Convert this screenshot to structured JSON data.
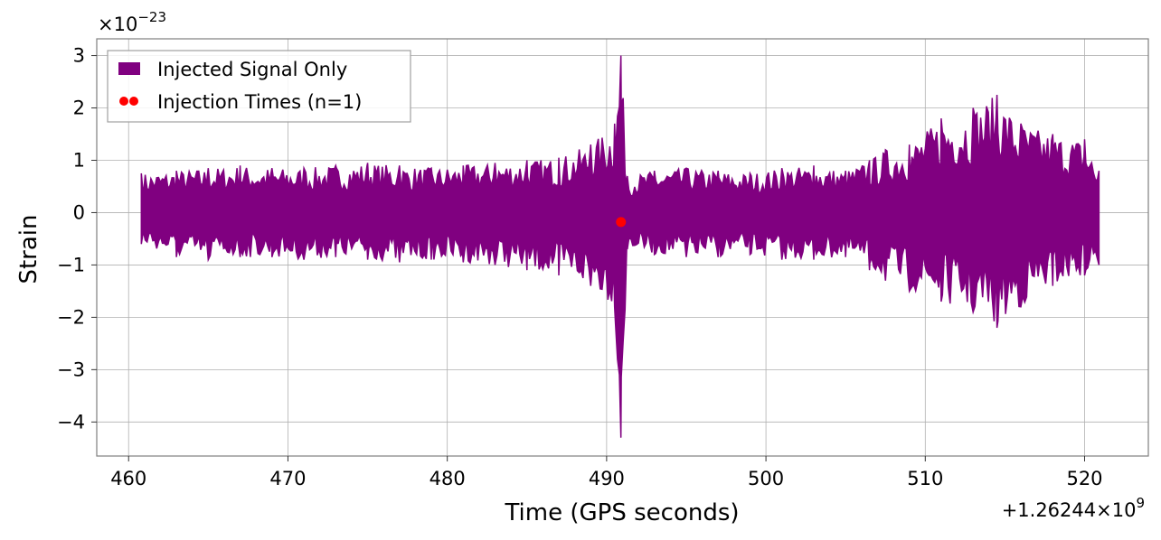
{
  "chart_data": {
    "type": "line",
    "xlabel": "Time (GPS seconds)",
    "ylabel": "Strain",
    "x_offset_label": "+1.26244×10",
    "x_offset_exponent": "9",
    "y_scale_label": "×10",
    "y_scale_exponent": "−23",
    "xlim": [
      458,
      524
    ],
    "ylim": [
      -4.65,
      3.32
    ],
    "x_ticks": [
      460,
      470,
      480,
      490,
      500,
      510,
      520
    ],
    "x_tick_labels": [
      "460",
      "470",
      "480",
      "490",
      "500",
      "510",
      "520"
    ],
    "y_ticks": [
      -4,
      -3,
      -2,
      -1,
      0,
      1,
      2,
      3
    ],
    "y_tick_labels": [
      "−4",
      "−3",
      "−2",
      "−1",
      "0",
      "1",
      "2",
      "3"
    ],
    "grid": true,
    "legend_position": "top-left",
    "series": [
      {
        "name": "Injected Signal Only",
        "kind": "filled-band",
        "color": "#800080",
        "x": [
          460.8,
          463,
          465,
          467,
          469,
          471,
          473,
          475,
          477,
          479,
          481,
          483,
          485,
          487,
          489,
          490.5,
          490.9,
          491.3,
          493,
          495,
          497,
          499,
          501,
          503,
          505,
          506.5,
          507.5,
          509,
          511,
          513,
          514.5,
          516,
          518,
          520,
          520.9
        ],
        "upper": [
          0.75,
          0.8,
          0.85,
          0.9,
          0.85,
          0.85,
          0.9,
          0.95,
          0.9,
          0.85,
          0.9,
          0.95,
          1.0,
          1.05,
          1.3,
          1.7,
          3.0,
          0.7,
          0.8,
          0.85,
          0.8,
          0.75,
          0.85,
          0.9,
          0.8,
          1.0,
          1.2,
          1.3,
          1.8,
          2.0,
          2.25,
          1.7,
          1.5,
          1.4,
          0.8
        ],
        "lower": [
          -0.6,
          -0.85,
          -0.9,
          -0.85,
          -0.85,
          -0.9,
          -0.85,
          -0.9,
          -0.95,
          -0.9,
          -0.95,
          -1.0,
          -1.1,
          -1.2,
          -1.4,
          -1.8,
          -4.3,
          -0.7,
          -0.8,
          -0.85,
          -0.85,
          -0.8,
          -0.9,
          -0.9,
          -0.85,
          -1.1,
          -1.3,
          -1.5,
          -1.7,
          -1.9,
          -2.2,
          -1.8,
          -1.4,
          -1.2,
          -1.0
        ]
      },
      {
        "name": "Injection Times (n=1)",
        "kind": "scatter",
        "color": "#ff0000",
        "x": [
          490.9
        ],
        "y": [
          -0.18
        ]
      }
    ]
  }
}
